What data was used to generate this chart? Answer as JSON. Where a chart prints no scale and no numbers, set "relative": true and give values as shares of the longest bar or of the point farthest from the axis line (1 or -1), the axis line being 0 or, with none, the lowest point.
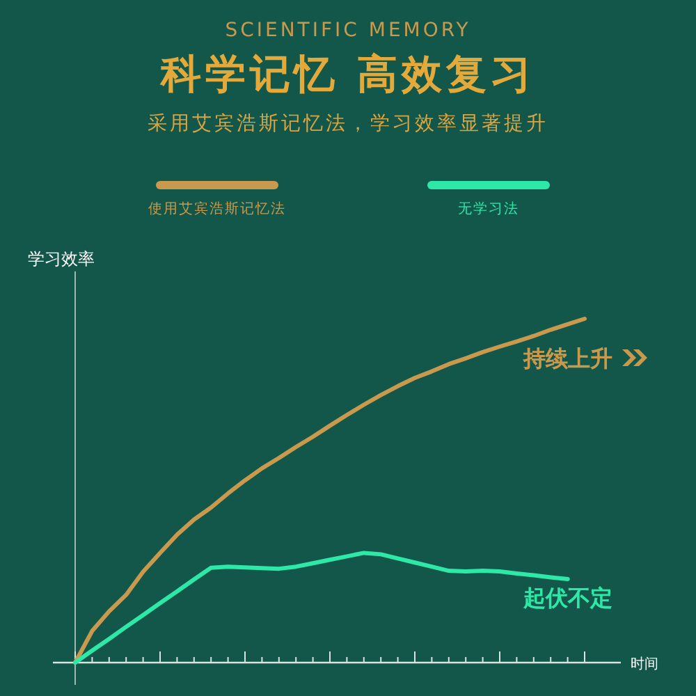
{
  "chart_data": {
    "type": "line",
    "relative": true,
    "title": "科学记忆 高效复习",
    "subtitle": "采用艾宾浩斯记忆法，学习效率显著提升",
    "ylabel": "学习效率",
    "xlabel": "时间",
    "annotations": [
      "SCIENTIFIC MEMORY",
      "持续上升",
      "起伏不定"
    ],
    "legend": "top",
    "grid": false,
    "marker": "none",
    "line_style": "solid",
    "categories": [
      null,
      null,
      null,
      null,
      null,
      null,
      null,
      null,
      null,
      null,
      null,
      null,
      null,
      null,
      null,
      null,
      null,
      null,
      null,
      null,
      null,
      null,
      null,
      null,
      null,
      null,
      null,
      null,
      null,
      null,
      null
    ],
    "series": [
      {
        "name": "使用艾宾浩斯记忆法",
        "color": "#c99a4e",
        "values": [
          0,
          0.092,
          0.149,
          0.197,
          0.264,
          0.319,
          0.372,
          0.416,
          0.451,
          0.492,
          0.53,
          0.565,
          0.595,
          0.627,
          0.657,
          0.689,
          0.72,
          0.75,
          0.778,
          0.804,
          0.828,
          0.847,
          0.868,
          0.885,
          0.903,
          0.919,
          0.934,
          0.95,
          0.968,
          0.984,
          1
        ]
      },
      {
        "name": "无学习法",
        "color": "#2ee8a8",
        "values": [
          0,
          0.035,
          0.069,
          0.104,
          0.138,
          0.173,
          0.207,
          0.242,
          0.276,
          0.279,
          0.277,
          0.275,
          0.273,
          0.279,
          0.289,
          0.299,
          0.309,
          0.319,
          0.315,
          0.303,
          0.291,
          0.279,
          0.267,
          0.265,
          0.267,
          0.265,
          0.259,
          0.254,
          0.248,
          0.243,
          null
        ]
      }
    ]
  }
}
